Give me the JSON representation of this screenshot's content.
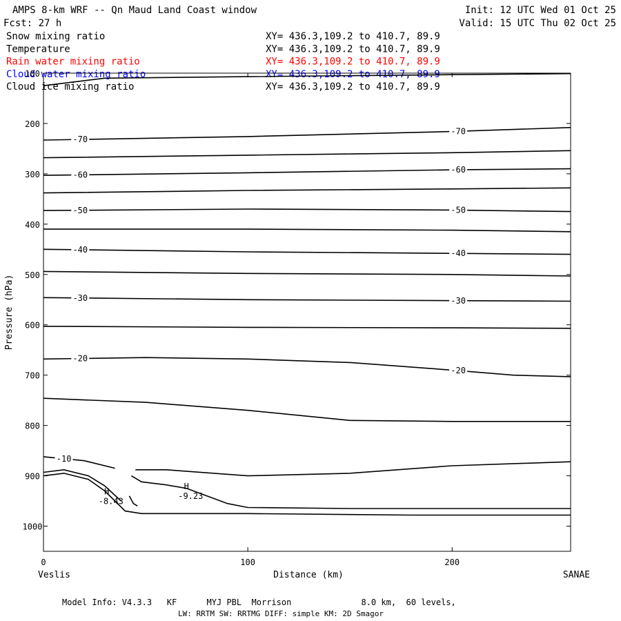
{
  "header": {
    "title": "AMPS 8-km WRF -- Qn Maud Land Coast window",
    "init": "Init: 12 UTC Wed 01 Oct 25",
    "fcst": "Fcst:   27 h",
    "valid": "Valid: 15 UTC Thu 02 Oct 25"
  },
  "fields": [
    {
      "name": "Snow mixing ratio",
      "xy": "XY= 436.3,109.2 to 410.7, 89.9",
      "color": "#000000"
    },
    {
      "name": "Temperature",
      "xy": "XY= 436.3,109.2 to 410.7, 89.9",
      "color": "#000000"
    },
    {
      "name": "Rain water mixing ratio",
      "xy": "XY= 436.3,109.2 to 410.7, 89.9",
      "color": "#ff0000"
    },
    {
      "name": "Cloud water mixing ratio",
      "xy": "XY= 436.3,109.2 to 410.7, 89.9",
      "color": "#0000ff"
    },
    {
      "name": "Cloud ice mixing ratio",
      "xy": "XY= 436.3,109.2 to 410.7, 89.9",
      "color": "#000000"
    }
  ],
  "footer": {
    "line1": "Model Info: V4.3.3   KF      MYJ PBL  Morrison              8.0 km,  60 levels,",
    "line2": "LW: RRTM SW: RRTMG   DIFF: simple KM: 2D Smagor"
  },
  "chart_data": {
    "type": "line",
    "xlabel": "Distance (km)",
    "ylabel": "Pressure (hPa)",
    "xlim": [
      0,
      258
    ],
    "ylim": [
      1050,
      100
    ],
    "x_ticks": [
      0,
      100,
      200
    ],
    "y_ticks": [
      100,
      200,
      300,
      400,
      500,
      600,
      700,
      800,
      900,
      1000
    ],
    "left_endpoint": "Veslis",
    "right_endpoint": "SANAE",
    "contours": [
      {
        "level": "",
        "points": [
          [
            0,
            125
          ],
          [
            30,
            110
          ],
          [
            100,
            107
          ],
          [
            200,
            103
          ],
          [
            258,
            101
          ]
        ]
      },
      {
        "level": "-70",
        "points": [
          [
            0,
            233
          ],
          [
            100,
            226
          ],
          [
            200,
            216
          ],
          [
            258,
            208
          ]
        ]
      },
      {
        "level": "",
        "points": [
          [
            0,
            268
          ],
          [
            100,
            263
          ],
          [
            200,
            258
          ],
          [
            258,
            254
          ]
        ]
      },
      {
        "level": "-60",
        "points": [
          [
            0,
            303
          ],
          [
            100,
            298
          ],
          [
            200,
            292
          ],
          [
            258,
            290
          ]
        ]
      },
      {
        "level": "",
        "points": [
          [
            0,
            338
          ],
          [
            100,
            333
          ],
          [
            200,
            330
          ],
          [
            258,
            328
          ]
        ]
      },
      {
        "level": "-50",
        "points": [
          [
            0,
            373
          ],
          [
            100,
            370
          ],
          [
            200,
            372
          ],
          [
            258,
            375
          ]
        ]
      },
      {
        "level": "",
        "points": [
          [
            0,
            410
          ],
          [
            100,
            410
          ],
          [
            200,
            412
          ],
          [
            258,
            415
          ]
        ]
      },
      {
        "level": "-40",
        "points": [
          [
            0,
            450
          ],
          [
            100,
            455
          ],
          [
            200,
            458
          ],
          [
            258,
            460
          ]
        ]
      },
      {
        "level": "",
        "points": [
          [
            0,
            494
          ],
          [
            100,
            498
          ],
          [
            200,
            500
          ],
          [
            258,
            503
          ]
        ]
      },
      {
        "level": "-30",
        "points": [
          [
            0,
            546
          ],
          [
            100,
            550
          ],
          [
            200,
            552
          ],
          [
            258,
            553
          ]
        ]
      },
      {
        "level": "",
        "points": [
          [
            0,
            603
          ],
          [
            100,
            605
          ],
          [
            200,
            606
          ],
          [
            258,
            607
          ]
        ]
      },
      {
        "level": "-20",
        "points": [
          [
            0,
            668
          ],
          [
            50,
            665
          ],
          [
            100,
            668
          ],
          [
            150,
            675
          ],
          [
            200,
            690
          ],
          [
            230,
            700
          ],
          [
            258,
            703
          ]
        ]
      },
      {
        "level": "",
        "points": [
          [
            0,
            746
          ],
          [
            50,
            754
          ],
          [
            100,
            770
          ],
          [
            150,
            790
          ],
          [
            200,
            792
          ],
          [
            258,
            792
          ]
        ]
      },
      {
        "level": "-10",
        "points": [
          [
            0,
            862
          ],
          [
            20,
            870
          ],
          [
            35,
            885
          ]
        ]
      },
      {
        "level": "",
        "points": [
          [
            45,
            888
          ],
          [
            60,
            888
          ],
          [
            100,
            900
          ],
          [
            150,
            895
          ],
          [
            200,
            880
          ],
          [
            258,
            872
          ]
        ]
      },
      {
        "level": "",
        "points": [
          [
            0,
            893
          ],
          [
            10,
            888
          ],
          [
            22,
            900
          ],
          [
            30,
            920
          ],
          [
            38,
            950
          ]
        ]
      },
      {
        "level": "",
        "points": [
          [
            0,
            900
          ],
          [
            10,
            895
          ],
          [
            22,
            907
          ],
          [
            30,
            930
          ],
          [
            40,
            970
          ],
          [
            48,
            975
          ],
          [
            100,
            975
          ],
          [
            180,
            978
          ],
          [
            258,
            978
          ]
        ]
      },
      {
        "level": "",
        "points": [
          [
            42,
            940
          ],
          [
            44,
            955
          ],
          [
            46,
            960
          ]
        ]
      },
      {
        "level": "",
        "points": [
          [
            43,
            900
          ],
          [
            48,
            912
          ],
          [
            60,
            918
          ],
          [
            70,
            925
          ],
          [
            80,
            940
          ],
          [
            90,
            955
          ],
          [
            100,
            963
          ],
          [
            150,
            965
          ],
          [
            258,
            965
          ]
        ]
      }
    ],
    "extrema": [
      {
        "type": "H",
        "value": "-8.43",
        "x": 31,
        "y": 945
      },
      {
        "type": "H",
        "value": "-9.23",
        "x": 70,
        "y": 935
      }
    ]
  }
}
